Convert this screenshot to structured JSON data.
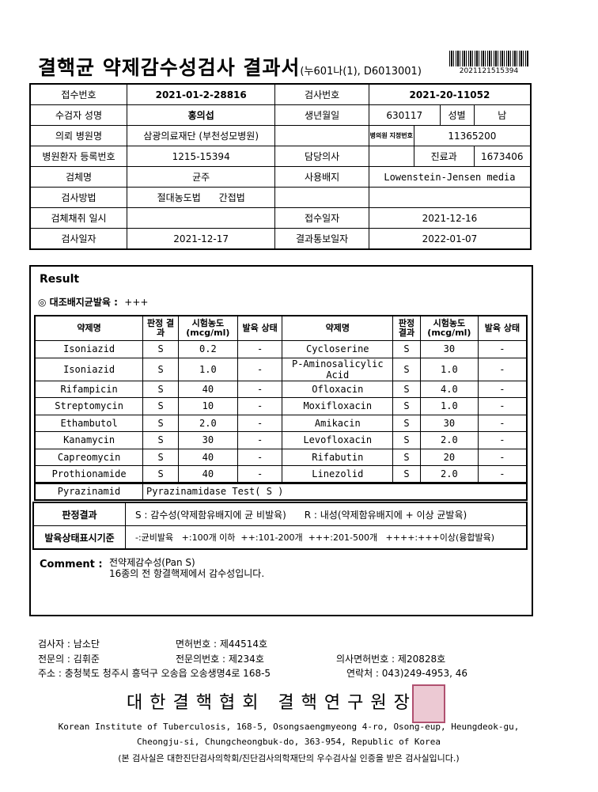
{
  "header": {
    "title": "결핵균 약제감수성검사 결과서",
    "code": "(누601나(1), D6013001)",
    "barcode_number": "2021121515394"
  },
  "info": {
    "receipt_no_label": "접수번호",
    "receipt_no": "2021-01-2-28816",
    "test_no_label": "검사번호",
    "test_no": "2021-20-11052",
    "name_label": "수검자 성명",
    "name": "홍의섭",
    "birth_label": "생년월일",
    "birth": "630117",
    "sex_label": "성별",
    "sex": "남",
    "hospital_label": "의뢰 병원명",
    "hospital": "삼광의료재단 (부천성모병원)",
    "hospital_code_label": "병의원 지정번호",
    "hospital_code": "11365200",
    "patient_no_label": "병원환자 등록번호",
    "patient_no": "1215-15394",
    "doctor_label": "담당의사",
    "doctor": "",
    "dept_label": "진료과",
    "dept": "1673406",
    "specimen_label": "검체명",
    "specimen": "균주",
    "medium_label": "사용배지",
    "medium": "Lowenstein-Jensen media",
    "method_label": "검사방법",
    "method_1": "절대농도법",
    "method_2": "간접법",
    "collect_label": "검체채취 일시",
    "collect": "",
    "received_label": "접수일자",
    "received": "2021-12-16",
    "test_date_label": "검사일자",
    "test_date": "2021-12-17",
    "report_date_label": "결과통보일자",
    "report_date": "2022-01-07"
  },
  "result": {
    "label": "Result",
    "culture_label": "◎ 대조배지균발육 :",
    "culture_value": "+++",
    "headers": [
      "약제명",
      "판정 결과",
      "시험농도 (mcg/ml)",
      "발육 상태"
    ],
    "rows": [
      [
        "Isoniazid",
        "S",
        "0.2",
        "-",
        "Cycloserine",
        "S",
        "30",
        "-"
      ],
      [
        "Isoniazid",
        "S",
        "1.0",
        "-",
        "P-Aminosalicylic Acid",
        "S",
        "1.0",
        "-"
      ],
      [
        "Rifampicin",
        "S",
        "40",
        "-",
        "Ofloxacin",
        "S",
        "4.0",
        "-"
      ],
      [
        "Streptomycin",
        "S",
        "10",
        "-",
        "Moxifloxacin",
        "S",
        "1.0",
        "-"
      ],
      [
        "Ethambutol",
        "S",
        "2.0",
        "-",
        "Amikacin",
        "S",
        "30",
        "-"
      ],
      [
        "Kanamycin",
        "S",
        "30",
        "-",
        "Levofloxacin",
        "S",
        "2.0",
        "-"
      ],
      [
        "Capreomycin",
        "S",
        "40",
        "-",
        "Rifabutin",
        "S",
        "20",
        "-"
      ],
      [
        "Prothionamide",
        "S",
        "40",
        "-",
        "Linezolid",
        "S",
        "2.0",
        "-"
      ]
    ],
    "pza_label": "Pyrazinamid",
    "pza_value": "Pyrazinamidase Test( S  )",
    "judge_label": "판정결과",
    "judge_s": "S : 감수성(약제함유배지에 균 비발육)",
    "judge_r": "R : 내성(약제함유배지에 + 이상 균발육)",
    "growth_label": "발육상태표시기준",
    "growth_text": "-:균비발육   +:100개 이하  ++:101-200개  +++:201-500개   ++++:+++이상(융합발육)",
    "comment_label": "Comment :",
    "comment_1": "전약제감수성(Pan S)",
    "comment_2": "16종의 전 항결핵제에서 감수성입니다."
  },
  "footer": {
    "examiner": "검사자 :  남소단",
    "license": "면허번호  :  제44514호",
    "specialist": "전문의 :  김휘준",
    "specialist_no": "전문의번호 :  제234호",
    "doctor_license": "의사면허번호 : 제20828호",
    "address": "주소 : 충청북도 청주시 흥덕구 오송읍 오송생명4로 168-5",
    "contact": "연락처 :  043)249-4953, 46",
    "org": "대한결핵협회  결핵연구원장",
    "en_1": "Korean Institute of Tuberculosis, 168-5, Osongsaengmyeong 4-ro, Osong-eup, Heungdeok-gu,",
    "en_2": "Cheongju-si, Chungcheongbuk-do, 363-954, Republic of Korea",
    "cert": "(본 검사실은 대한진단검사의학회/진단검사의학재단의 우수검사실 인증을 받은 검사실입니다.)"
  }
}
